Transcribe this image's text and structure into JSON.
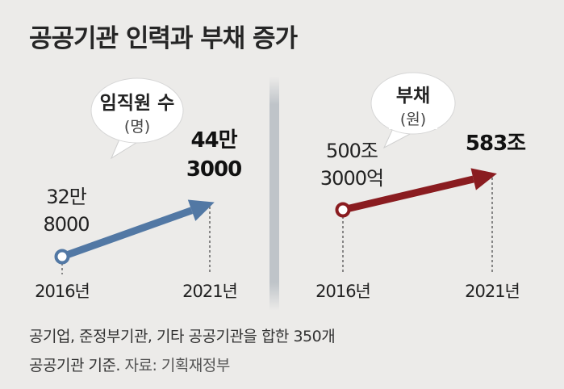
{
  "title": "공공기관 인력과 부채 증가",
  "colors": {
    "background": "#ecebe9",
    "staff_arrow": "#5278a4",
    "debt_arrow": "#8a1c20",
    "divider": "#bfc4c9",
    "bubble": "#ffffff"
  },
  "chart_data": [
    {
      "type": "line",
      "title": "임직원 수",
      "unit": "(명)",
      "categories": [
        "2016년",
        "2021년"
      ],
      "values": [
        328000,
        443000
      ],
      "value_labels": [
        [
          "32만",
          "8000"
        ],
        [
          "44만",
          "3000"
        ]
      ],
      "marker": "hollow-circle-start, arrow-end"
    },
    {
      "type": "line",
      "title": "부채",
      "unit": "(원)",
      "categories": [
        "2016년",
        "2021년"
      ],
      "values": [
        500.3,
        583
      ],
      "value_labels": [
        [
          "500조",
          "3000억"
        ],
        [
          "583조"
        ]
      ],
      "marker": "hollow-circle-start, arrow-end"
    }
  ],
  "footnote": {
    "line1": "공기업, 준정부기관, 기타 공공기관을 합한 350개",
    "line2": "공공기관 기준.",
    "source": "자료: 기획재정부"
  }
}
